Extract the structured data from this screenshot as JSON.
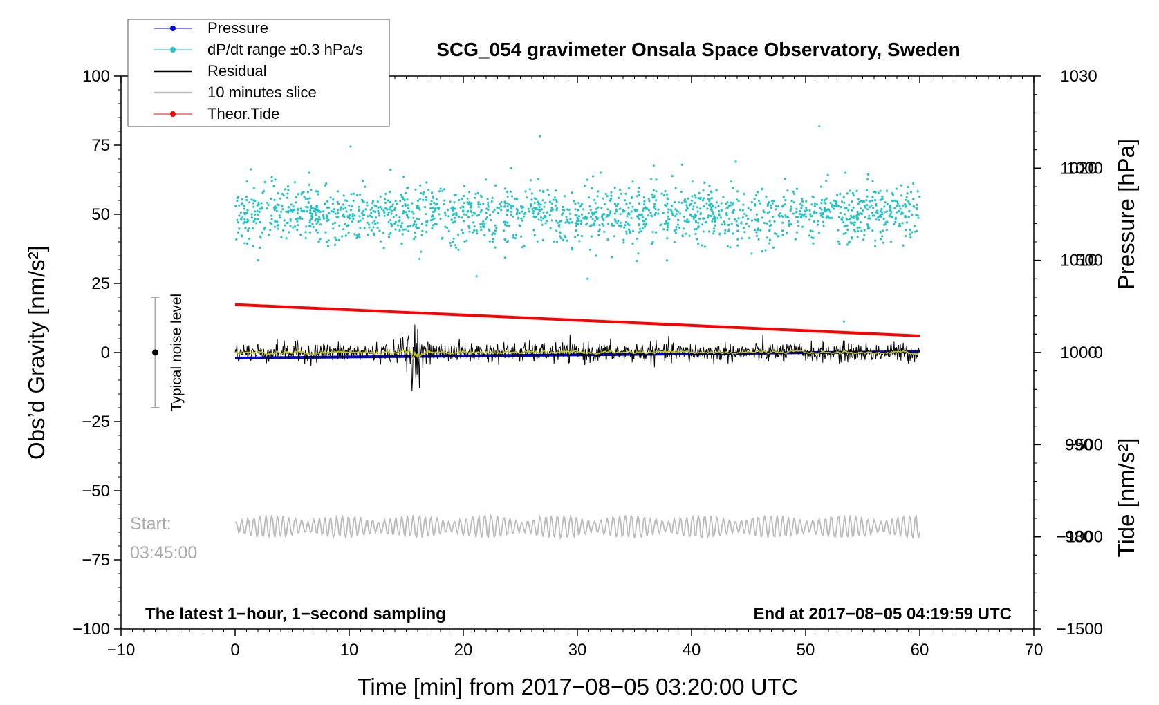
{
  "chart_data": {
    "type": "scatter",
    "title": "SCG_054 gravimeter Onsala Space Observatory, Sweden",
    "xlabel": "Time [min] from 2017−08−05 03:20:00 UTC",
    "ylabel_left": "Obs’d Gravity [nm/s²]",
    "ylabel_pressure": "Pressure [hPa]",
    "ylabel_tide": "Tide [nm/s²]",
    "xlim": [
      -10,
      70
    ],
    "ylim_left": [
      -100,
      100
    ],
    "pressure_axis": {
      "range": [
        970,
        1030
      ],
      "ticks": [
        980,
        990,
        1000,
        1010,
        1020,
        1030
      ]
    },
    "tide_axis": {
      "range": [
        -1500,
        1500
      ],
      "ticks": [
        -1500,
        -1000,
        -500,
        0,
        500,
        1000
      ]
    },
    "x_ticks": [
      -10,
      0,
      10,
      20,
      30,
      40,
      50,
      60,
      70
    ],
    "x_tick_labels": [
      "−10",
      "0",
      "10",
      "20",
      "30",
      "40",
      "50",
      "60",
      "70"
    ],
    "y_ticks_left": [
      -100,
      -75,
      -50,
      -25,
      0,
      25,
      50,
      75,
      100
    ],
    "y_tick_labels_left": [
      "−100",
      "−75",
      "−50",
      "−25",
      "0",
      "25",
      "50",
      "75",
      "100"
    ],
    "tide_tick_labels": [
      "−1500",
      "−1000",
      "−500",
      "0",
      "500",
      "1000"
    ],
    "pressure_tick_labels": [
      "980",
      "990",
      "1000",
      "1010",
      "1020",
      "1030"
    ],
    "legend": {
      "position": "top-left",
      "entries": [
        {
          "label": "Pressure",
          "color": "#0000dd",
          "marker": "dot"
        },
        {
          "label": "dP/dt range ±0.3 hPa/s",
          "color": "#22c4c4",
          "marker": "dot"
        },
        {
          "label": "Residual",
          "color": "#000000",
          "marker": "line"
        },
        {
          "label": "10 minutes slice",
          "color": "#bbbbbb",
          "marker": "line"
        },
        {
          "label": "Theor.Tide",
          "color": "#ff0000",
          "marker": "dot"
        }
      ]
    },
    "series": [
      {
        "name": "Pressure",
        "axis": "pressure",
        "color": "#0000dd",
        "x": [
          0,
          60
        ],
        "values": [
          999.4,
          1000.1
        ]
      },
      {
        "name": "dP/dt range ±0.3 hPa/s",
        "axis": "left",
        "color": "#22c4c4",
        "center": 50,
        "spread": 5,
        "x_range": [
          0,
          60
        ]
      },
      {
        "name": "Residual",
        "axis": "left",
        "color": "#000000",
        "center": 0,
        "spread": 3,
        "burst_at_min": 15.5,
        "burst_max": 14
      },
      {
        "name": "Residual smoothed",
        "axis": "left",
        "color": "#c8c800",
        "center": 0,
        "spread": 1
      },
      {
        "name": "Theor.Tide",
        "axis": "tide",
        "color": "#ff0000",
        "x": [
          0,
          60
        ],
        "values": [
          260,
          90
        ]
      },
      {
        "name": "10 minutes slice",
        "axis": "left",
        "color": "#bbbbbb",
        "center": -63,
        "spread": 3,
        "x_range": [
          0,
          60
        ]
      }
    ],
    "noise_indicator": {
      "label": "Typical noise level",
      "x": -7,
      "center": 0,
      "low": -20,
      "high": 20
    },
    "annotations": {
      "slice_start_label": "Start:",
      "slice_start_time": "03:45:00",
      "bottom_left": "The latest 1−hour, 1−second sampling",
      "bottom_right": "End at 2017−08−05 04:19:59 UTC"
    }
  }
}
